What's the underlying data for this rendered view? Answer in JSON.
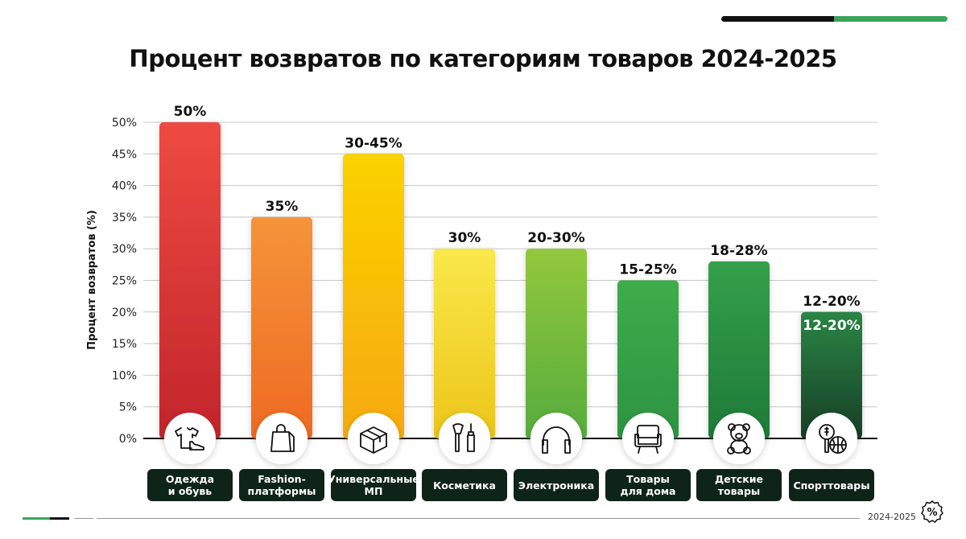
{
  "chart_data": {
    "type": "bar",
    "title": "Процент возвратов по категориям товаров 2024-2025",
    "ylabel": "Процент возвратов (%)",
    "xlabel": "",
    "ylim": [
      0,
      50
    ],
    "yticks": [
      0,
      5,
      10,
      15,
      20,
      25,
      30,
      35,
      40,
      45,
      50
    ],
    "ytick_labels": [
      "0%",
      "5%",
      "10%",
      "15%",
      "20%",
      "25%",
      "30%",
      "35%",
      "40%",
      "45%",
      "50%"
    ],
    "grid": true,
    "categories": [
      "Одежда\nи обувь",
      "Fashion-\nплатформы",
      "Универсальные\nМП",
      "Косметика",
      "Электроника",
      "Товары\nдля дома",
      "Детские\nтовары",
      "Спорттовары"
    ],
    "values": [
      50,
      35,
      45,
      30,
      30,
      25,
      28,
      20
    ],
    "data_labels": [
      "50%",
      "35%",
      "30-45%",
      "30%",
      "20-30%",
      "15-25%",
      "18-28%",
      "12-20%"
    ],
    "inner_label": {
      "index": 7,
      "text": "12-20%"
    },
    "icons": [
      "clothes-shoe-icon",
      "shopping-bag-icon",
      "box-icon",
      "makeup-brush-icon",
      "headphones-icon",
      "armchair-icon",
      "teddy-bear-icon",
      "sports-icon"
    ],
    "colors": [
      [
        "#ee4a42",
        "#c2252b"
      ],
      [
        "#f5943a",
        "#ee6a22"
      ],
      [
        "#fbd200",
        "#f6a90e"
      ],
      [
        "#fae84a",
        "#ecc51a"
      ],
      [
        "#92c83e",
        "#56ac3c"
      ],
      [
        "#3eac4a",
        "#2d9442"
      ],
      [
        "#34a04a",
        "#1e7a38"
      ],
      [
        "#2a8544",
        "#173f26"
      ]
    ]
  },
  "footer": {
    "year": "2024-2025",
    "badge_icon": "percent-badge-icon"
  }
}
